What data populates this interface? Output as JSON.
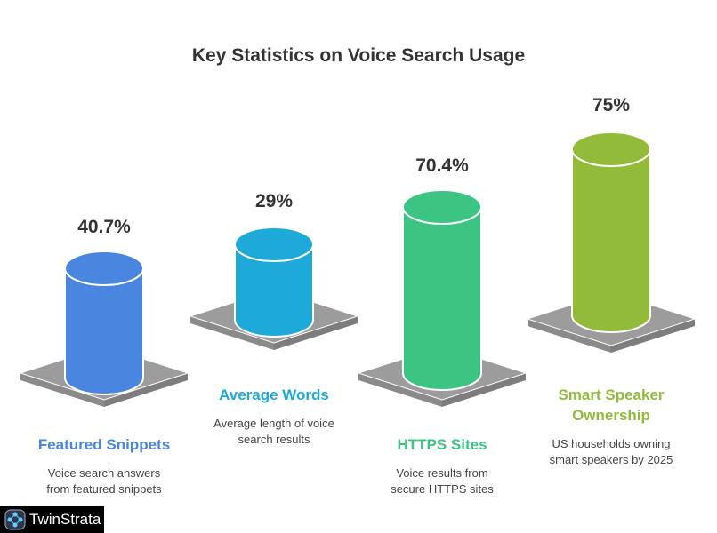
{
  "chart_data": {
    "type": "bar",
    "title": "Key Statistics on Voice Search Usage",
    "categories": [
      "Featured Snippets",
      "Average Words",
      "HTTPS Sites",
      "Smart Speaker Ownership"
    ],
    "values": [
      40.7,
      29,
      70.4,
      75
    ],
    "value_labels": [
      "40.7%",
      "29%",
      "70.4%",
      "75%"
    ],
    "descriptions": [
      [
        "Voice search answers",
        "from featured snippets"
      ],
      [
        "Average length of voice",
        "search results"
      ],
      [
        "Voice results from",
        "secure HTTPS sites"
      ],
      [
        "US households owning",
        "smart speakers by 2025"
      ]
    ],
    "title_lines": [
      [
        "Featured Snippets"
      ],
      [
        "Average Words"
      ],
      [
        "HTTPS Sites"
      ],
      [
        "Smart Speaker",
        "Ownership"
      ]
    ],
    "colors": [
      "#4a86e0",
      "#1eaad9",
      "#3cc483",
      "#93bb3a"
    ],
    "unit": "%"
  },
  "logo": {
    "text": "TwinStrata"
  }
}
